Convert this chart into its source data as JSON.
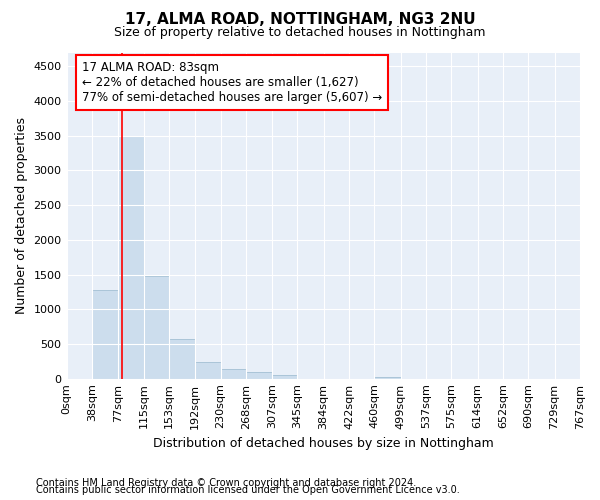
{
  "title": "17, ALMA ROAD, NOTTINGHAM, NG3 2NU",
  "subtitle": "Size of property relative to detached houses in Nottingham",
  "xlabel": "Distribution of detached houses by size in Nottingham",
  "ylabel": "Number of detached properties",
  "footer_line1": "Contains HM Land Registry data © Crown copyright and database right 2024.",
  "footer_line2": "Contains public sector information licensed under the Open Government Licence v3.0.",
  "bar_edges": [
    0,
    38,
    77,
    115,
    153,
    192,
    230,
    268,
    307,
    345,
    384,
    422,
    460,
    499,
    537,
    575,
    614,
    652,
    690,
    729,
    767
  ],
  "bar_heights": [
    0,
    1280,
    3500,
    1480,
    575,
    240,
    140,
    90,
    50,
    0,
    0,
    0,
    25,
    0,
    0,
    0,
    0,
    0,
    0,
    0
  ],
  "bar_color": "#ccdded",
  "bar_edge_color": "#aac4d8",
  "red_line_x": 83,
  "ylim": [
    0,
    4700
  ],
  "yticks": [
    0,
    500,
    1000,
    1500,
    2000,
    2500,
    3000,
    3500,
    4000,
    4500
  ],
  "annotation_title": "17 ALMA ROAD: 83sqm",
  "annotation_line1": "← 22% of detached houses are smaller (1,627)",
  "annotation_line2": "77% of semi-detached houses are larger (5,607) →",
  "bg_color": "#e8eff8",
  "grid_color": "#ffffff",
  "title_fontsize": 11,
  "subtitle_fontsize": 9,
  "axis_label_fontsize": 9,
  "tick_fontsize": 8,
  "annotation_fontsize": 8.5,
  "footer_fontsize": 7
}
